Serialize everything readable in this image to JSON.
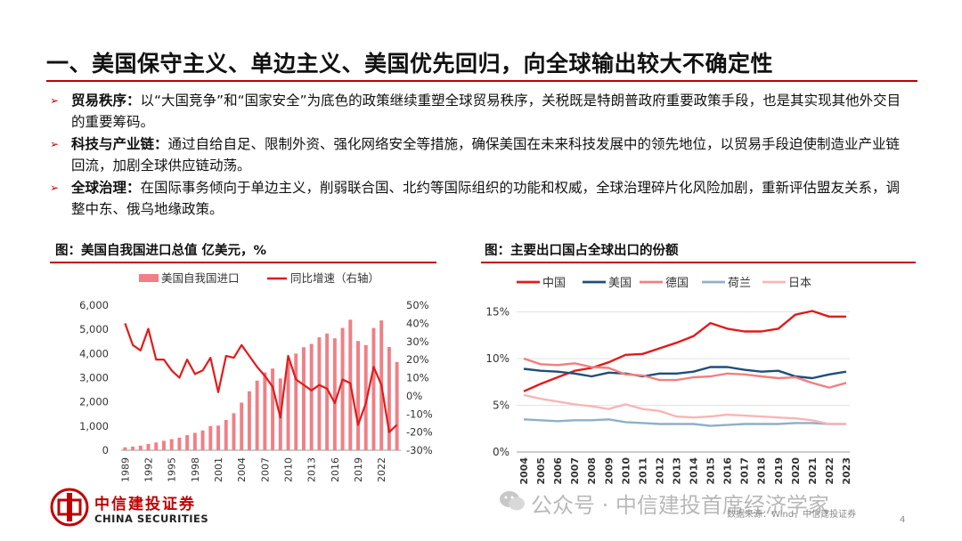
{
  "title": "一、美国保守主义、单边主义、美国优先回归，向全球输出较大不确定性",
  "bullets": [
    {
      "head": "贸易秩序：",
      "text": "以“大国竞争”和“国家安全”为底色的政策继续重塑全球贸易秩序，关税既是特朗普政府重要政策手段，也是其实现其他外交目的重要筹码。"
    },
    {
      "head": "科技与产业链：",
      "text": "通过自给自足、限制外资、强化网络安全等措施，确保美国在未来科技发展中的领先地位，以贸易手段迫使制造业产业链回流，加剧全球供应链动荡。"
    },
    {
      "head": "全球治理：",
      "text": "在国际事务倾向于单边主义，削弱联合国、北约等国际组织的功能和权威，全球治理碎片化风险加剧，重新评估盟友关系，调整中东、俄乌地缘政策。"
    }
  ],
  "footer": {
    "logo_cn": "中信建投证券",
    "logo_en": "CHINA SECURITIES",
    "watermark": "公众号 · 中信建投首席经济学家",
    "source": "数据来源：Wind，中信建投证券",
    "page": "4"
  },
  "colors": {
    "accent": "#c00000",
    "bar": "#f07f86",
    "line_red": "#e31a1c"
  },
  "chart_data": [
    {
      "type": "bar",
      "title": "图：美国自我国进口总值 亿美元，%",
      "legend": [
        "美国自我国进口",
        "同比增速（右轴）"
      ],
      "x": [
        1989,
        1990,
        1991,
        1992,
        1993,
        1994,
        1995,
        1996,
        1997,
        1998,
        1999,
        2000,
        2001,
        2002,
        2003,
        2004,
        2005,
        2006,
        2007,
        2008,
        2009,
        2010,
        2011,
        2012,
        2013,
        2014,
        2015,
        2016,
        2017,
        2018,
        2019,
        2020,
        2021,
        2022,
        2023,
        2024
      ],
      "x_tick_labels": [
        "1989",
        "1992",
        "1995",
        "1998",
        "2001",
        "2004",
        "2007",
        "2010",
        "2013",
        "2016",
        "2019",
        "2022"
      ],
      "series": [
        {
          "name": "美国自我国进口",
          "axis": "left",
          "values": [
            120,
            150,
            190,
            260,
            320,
            390,
            460,
            520,
            630,
            720,
            820,
            1000,
            1020,
            1250,
            1530,
            1970,
            2440,
            2880,
            3220,
            3380,
            2970,
            3650,
            4000,
            4260,
            4400,
            4670,
            4830,
            4630,
            5060,
            5400,
            4520,
            4350,
            5060,
            5370,
            4270,
            3650
          ]
        },
        {
          "name": "同比增速（右轴）",
          "axis": "right",
          "values": [
            40,
            28,
            25,
            37,
            20,
            20,
            14,
            10,
            20,
            12,
            14,
            21,
            2,
            22,
            21,
            28,
            22,
            16,
            11,
            5,
            -12,
            22,
            9,
            6,
            3,
            6,
            4,
            -4,
            9,
            7,
            -16,
            -4,
            16,
            6,
            -20,
            -16
          ]
        }
      ],
      "ylim_left": [
        0,
        6000
      ],
      "yticks_left": [
        "0",
        "1,000",
        "2,000",
        "3,000",
        "4,000",
        "5,000",
        "6,000"
      ],
      "ylim_right": [
        -30,
        50
      ],
      "yticks_right": [
        "-30%",
        "-20%",
        "-10%",
        "0%",
        "10%",
        "20%",
        "30%",
        "40%",
        "50%"
      ]
    },
    {
      "type": "line",
      "title": "图：主要出口国占全球出口的份额",
      "x": [
        "2004",
        "2005",
        "2006",
        "2007",
        "2008",
        "2009",
        "2010",
        "2011",
        "2012",
        "2013",
        "2014",
        "2015",
        "2016",
        "2017",
        "2018",
        "2019",
        "2020",
        "2021",
        "2022",
        "2023"
      ],
      "series": [
        {
          "name": "中国",
          "color": "#e31a1c",
          "values": [
            6.5,
            7.3,
            8.0,
            8.7,
            9.0,
            9.6,
            10.4,
            10.5,
            11.1,
            11.7,
            12.4,
            13.8,
            13.2,
            12.9,
            12.9,
            13.2,
            14.7,
            15.1,
            14.5,
            14.5
          ]
        },
        {
          "name": "美国",
          "color": "#1f4e79",
          "values": [
            8.9,
            8.7,
            8.6,
            8.4,
            8.1,
            8.5,
            8.4,
            8.1,
            8.4,
            8.4,
            8.6,
            9.1,
            9.1,
            8.8,
            8.6,
            8.7,
            8.1,
            7.9,
            8.3,
            8.6
          ]
        },
        {
          "name": "德国",
          "color": "#f08080",
          "values": [
            10.0,
            9.4,
            9.3,
            9.5,
            9.1,
            9.0,
            8.3,
            8.2,
            7.7,
            7.7,
            8.0,
            8.1,
            8.4,
            8.3,
            8.1,
            7.9,
            8.0,
            7.4,
            6.9,
            7.4
          ]
        },
        {
          "name": "荷兰",
          "color": "#8fafc8",
          "values": [
            3.5,
            3.4,
            3.3,
            3.4,
            3.4,
            3.5,
            3.2,
            3.1,
            3.0,
            3.0,
            3.0,
            2.8,
            2.9,
            3.0,
            3.0,
            3.0,
            3.1,
            3.1,
            3.0,
            3.0
          ]
        },
        {
          "name": "日本",
          "color": "#f7b6b6",
          "values": [
            6.1,
            5.7,
            5.4,
            5.1,
            4.9,
            4.6,
            5.1,
            4.6,
            4.4,
            3.8,
            3.7,
            3.8,
            4.0,
            3.9,
            3.8,
            3.7,
            3.6,
            3.4,
            3.0,
            3.0
          ]
        }
      ],
      "ylim": [
        0,
        16
      ],
      "yticks": [
        "0%",
        "5%",
        "10%",
        "15%"
      ]
    }
  ]
}
